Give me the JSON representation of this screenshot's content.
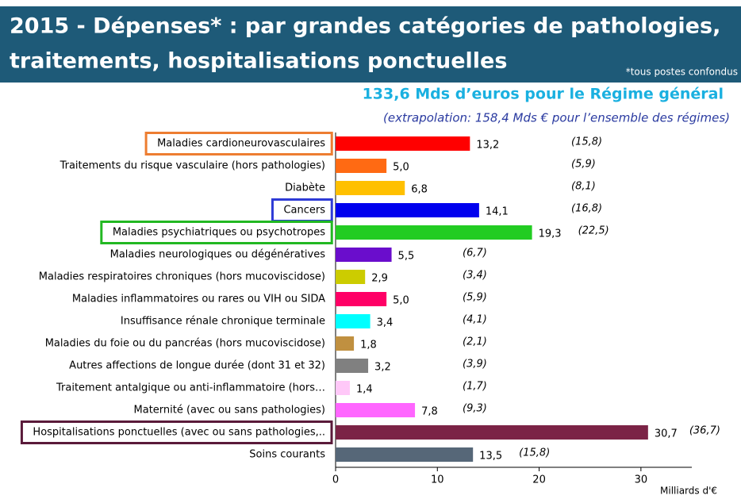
{
  "chart_data": {
    "type": "bar",
    "orientation": "horizontal",
    "title": "2015 - Dépenses* : par grandes catégories de pathologies,",
    "title_line2": "traitements, hospitalisations ponctuelles",
    "footnote": "*tous postes confondus",
    "subtitle": "133,6 Mds d’euros pour le Régime général",
    "subtitle2": "(extrapolation: 158,4 Mds € pour l’ensemble des régimes)",
    "x_label": "Milliards d'€",
    "categories": [
      "Maladies cardioneurovasculaires",
      "Traitements du risque vasculaire (hors pathologies)",
      "Diabète",
      "Cancers",
      "Maladies psychiatriques ou psychotropes",
      "Maladies neurologiques ou dégénératives",
      "Maladies respiratoires chroniques (hors mucoviscidose)",
      "Maladies inflammatoires ou rares ou VIH ou SIDA",
      "Insuffisance rénale chronique terminale",
      "Maladies du foie ou du pancréas (hors mucoviscidose)",
      "Autres affections de longue durée (dont 31 et 32)",
      "Traitement antalgique ou anti-inflammatoire (hors…",
      "Maternité (avec ou sans pathologies)",
      "Hospitalisations ponctuelles (avec ou sans pathologies,..",
      "Soins courants"
    ],
    "values": [
      13.2,
      5.0,
      6.8,
      14.1,
      19.3,
      5.5,
      2.9,
      5.0,
      3.4,
      1.8,
      3.2,
      1.4,
      7.8,
      30.7,
      13.5
    ],
    "value_labels": [
      "13,2",
      "5,0",
      "6,8",
      "14,1",
      "19,3",
      "5,5",
      "2,9",
      "5,0",
      "3,4",
      "1,8",
      "3,2",
      "1,4",
      "7,8",
      "30,7",
      "13,5"
    ],
    "colors": [
      "#ff0000",
      "#ff6a13",
      "#ffc000",
      "#0000ee",
      "#22cc22",
      "#6a0dcc",
      "#cccc00",
      "#ff0066",
      "#00ffff",
      "#c09040",
      "#808080",
      "#ffc8f8",
      "#ff66ff",
      "#7b2346",
      "#566778"
    ],
    "extrapolation": {
      "values": [
        15.8,
        5.9,
        8.1,
        16.8,
        22.5,
        6.7,
        3.4,
        5.9,
        4.1,
        2.1,
        3.9,
        1.7,
        9.3,
        36.7,
        15.8
      ],
      "value_labels": [
        "(15,8)",
        "(5,9)",
        "(8,1)",
        "(16,8)",
        "(22,5)",
        "(6,7)",
        "(3,4)",
        "(5,9)",
        "(4,1)",
        "(2,1)",
        "(3,9)",
        "(1,7)",
        "(9,3)",
        "(36,7)",
        "(15,8)"
      ]
    },
    "highlights": [
      {
        "index": 0,
        "color": "#ed7d31"
      },
      {
        "index": 3,
        "color": "#2e3bd6"
      },
      {
        "index": 4,
        "color": "#22b822"
      },
      {
        "index": 13,
        "color": "#5a1a3a"
      }
    ],
    "xlim": [
      0,
      35
    ],
    "xticks": [
      0,
      10,
      20,
      30
    ]
  }
}
